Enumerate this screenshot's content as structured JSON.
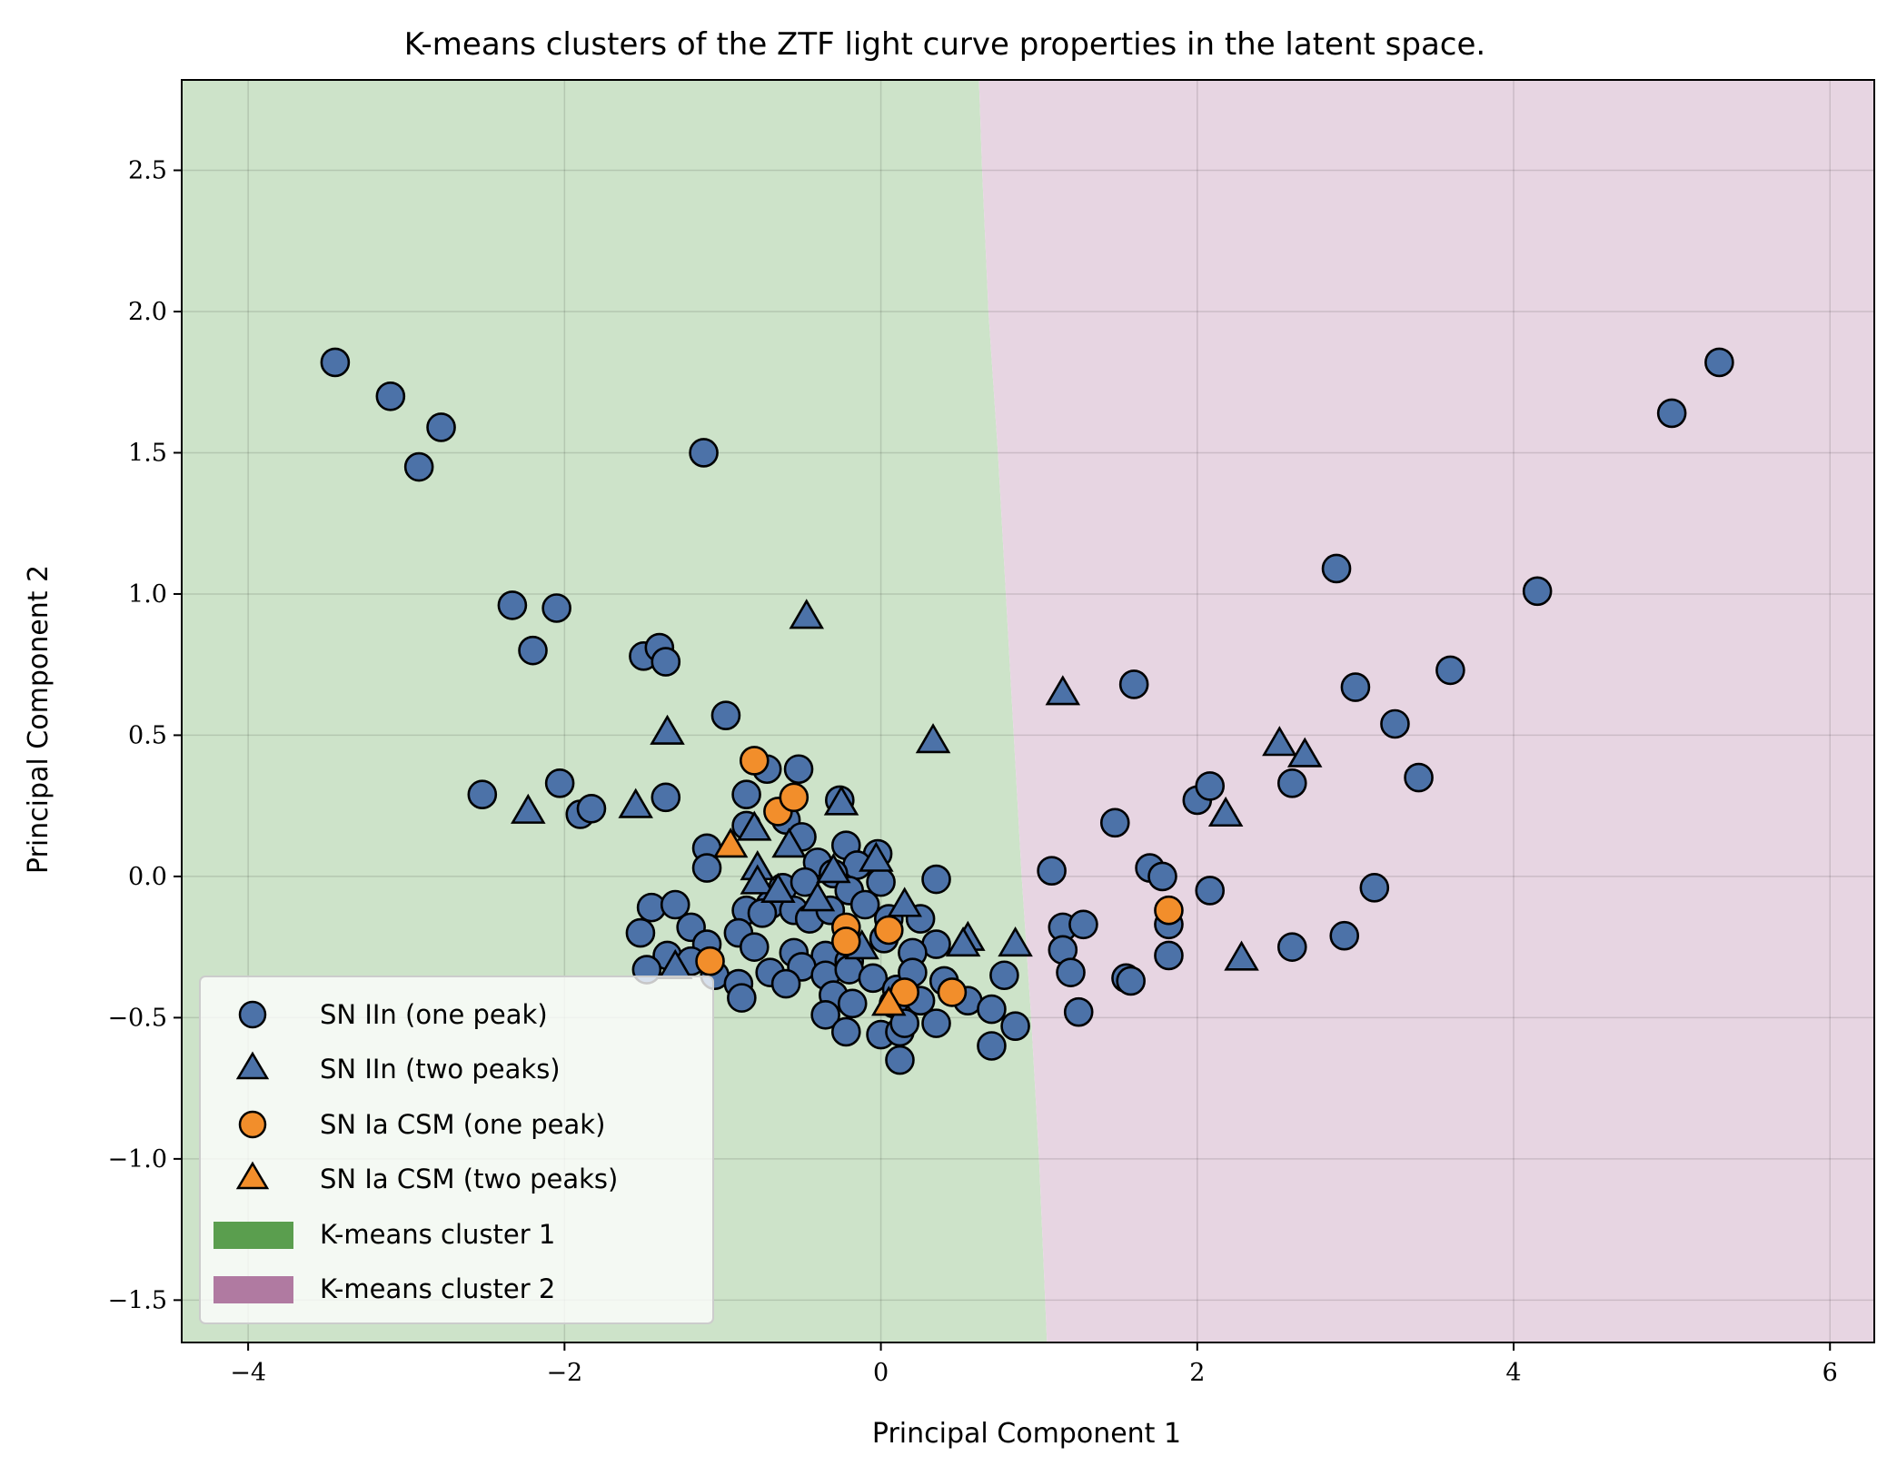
{
  "chart_data": {
    "type": "scatter",
    "title": "K-means clusters of the ZTF light curve properties in the latent space.",
    "xlabel": "Principal Component 1",
    "ylabel": "Principal Component 2",
    "xlim": [
      -4.42,
      6.28
    ],
    "ylim": [
      -1.65,
      2.82
    ],
    "xticks": [
      -4,
      -2,
      0,
      2,
      4,
      6
    ],
    "yticks": [
      -1.5,
      -1.0,
      -0.5,
      0.0,
      0.5,
      1.0,
      1.5,
      2.0,
      2.5
    ],
    "grid": true,
    "legend_position": "lower-left",
    "colors": {
      "sn_iin": "#4c72a8",
      "sn_ia_csm": "#f28e2b",
      "cluster1_fill": "#cde3c9",
      "cluster2_fill": "#e7d5e2",
      "cluster1_swatch": "#5a9e4e",
      "cluster2_swatch": "#b07aa1"
    },
    "boundary": [
      [
        0.62,
        2.82
      ],
      [
        0.64,
        2.5
      ],
      [
        0.68,
        2.0
      ],
      [
        0.74,
        1.5
      ],
      [
        0.79,
        1.0
      ],
      [
        0.84,
        0.5
      ],
      [
        0.89,
        0.0
      ],
      [
        0.95,
        -0.5
      ],
      [
        1.0,
        -1.0
      ],
      [
        1.05,
        -1.65
      ]
    ],
    "series": [
      {
        "name": "SN IIn (one peak)",
        "marker": "circle",
        "color": "#4c72a8",
        "points": [
          [
            -3.45,
            1.82
          ],
          [
            -3.1,
            1.7
          ],
          [
            -2.78,
            1.59
          ],
          [
            -2.92,
            1.45
          ],
          [
            -1.12,
            1.5
          ],
          [
            -2.33,
            0.96
          ],
          [
            -2.05,
            0.95
          ],
          [
            -2.2,
            0.8
          ],
          [
            -1.5,
            0.78
          ],
          [
            -1.4,
            0.81
          ],
          [
            -1.36,
            0.76
          ],
          [
            -0.98,
            0.57
          ],
          [
            -2.52,
            0.29
          ],
          [
            -2.03,
            0.33
          ],
          [
            -1.9,
            0.22
          ],
          [
            -1.83,
            0.24
          ],
          [
            -1.36,
            0.28
          ],
          [
            -0.72,
            0.38
          ],
          [
            -0.52,
            0.38
          ],
          [
            -0.85,
            0.29
          ],
          [
            -0.26,
            0.27
          ],
          [
            -0.6,
            0.2
          ],
          [
            -0.85,
            0.18
          ],
          [
            -0.5,
            0.14
          ],
          [
            -0.22,
            0.11
          ],
          [
            -0.02,
            0.08
          ],
          [
            -0.4,
            0.05
          ],
          [
            -0.15,
            0.04
          ],
          [
            -1.1,
            0.1
          ],
          [
            -1.1,
            0.03
          ],
          [
            -0.3,
            0.01
          ],
          [
            -0.62,
            -0.04
          ],
          [
            -0.48,
            -0.02
          ],
          [
            -0.2,
            -0.05
          ],
          [
            0.0,
            -0.02
          ],
          [
            0.35,
            -0.01
          ],
          [
            -1.45,
            -0.11
          ],
          [
            -1.3,
            -0.1
          ],
          [
            -1.2,
            -0.18
          ],
          [
            -0.85,
            -0.12
          ],
          [
            -0.7,
            -0.1
          ],
          [
            -0.55,
            -0.12
          ],
          [
            -0.45,
            -0.15
          ],
          [
            -0.32,
            -0.12
          ],
          [
            -0.1,
            -0.1
          ],
          [
            0.05,
            -0.15
          ],
          [
            0.25,
            -0.15
          ],
          [
            0.35,
            -0.24
          ],
          [
            -1.52,
            -0.2
          ],
          [
            -1.1,
            -0.24
          ],
          [
            -0.9,
            -0.2
          ],
          [
            -0.8,
            -0.25
          ],
          [
            -0.75,
            -0.13
          ],
          [
            -0.55,
            -0.27
          ],
          [
            -0.35,
            -0.28
          ],
          [
            -0.2,
            -0.3
          ],
          [
            0.02,
            -0.22
          ],
          [
            0.2,
            -0.27
          ],
          [
            -1.35,
            -0.28
          ],
          [
            -1.2,
            -0.3
          ],
          [
            -1.48,
            -0.33
          ],
          [
            -1.05,
            -0.35
          ],
          [
            -0.9,
            -0.38
          ],
          [
            -0.7,
            -0.34
          ],
          [
            -0.5,
            -0.32
          ],
          [
            -0.35,
            -0.35
          ],
          [
            -0.2,
            -0.33
          ],
          [
            -0.05,
            -0.36
          ],
          [
            0.1,
            -0.4
          ],
          [
            0.2,
            -0.34
          ],
          [
            0.4,
            -0.37
          ],
          [
            0.55,
            -0.44
          ],
          [
            0.78,
            -0.35
          ],
          [
            -0.88,
            -0.43
          ],
          [
            -0.6,
            -0.38
          ],
          [
            -0.3,
            -0.42
          ],
          [
            -0.18,
            -0.45
          ],
          [
            0.08,
            -0.45
          ],
          [
            0.25,
            -0.44
          ],
          [
            0.35,
            -0.52
          ],
          [
            0.7,
            -0.47
          ],
          [
            0.85,
            -0.53
          ],
          [
            -0.35,
            -0.49
          ],
          [
            -0.22,
            -0.55
          ],
          [
            0.0,
            -0.56
          ],
          [
            0.12,
            -0.55
          ],
          [
            0.15,
            -0.52
          ],
          [
            0.12,
            -0.65
          ],
          [
            0.7,
            -0.6
          ],
          [
            1.08,
            0.02
          ],
          [
            1.15,
            -0.18
          ],
          [
            1.15,
            -0.26
          ],
          [
            1.2,
            -0.34
          ],
          [
            1.25,
            -0.48
          ],
          [
            1.28,
            -0.17
          ],
          [
            1.48,
            0.19
          ],
          [
            1.6,
            0.68
          ],
          [
            1.55,
            -0.36
          ],
          [
            1.58,
            -0.37
          ],
          [
            1.7,
            0.03
          ],
          [
            1.78,
            0.0
          ],
          [
            1.82,
            -0.17
          ],
          [
            1.82,
            -0.28
          ],
          [
            2.0,
            0.27
          ],
          [
            2.08,
            0.32
          ],
          [
            2.08,
            -0.05
          ],
          [
            2.6,
            0.33
          ],
          [
            2.6,
            -0.25
          ],
          [
            2.88,
            1.09
          ],
          [
            2.93,
            -0.21
          ],
          [
            3.0,
            0.67
          ],
          [
            3.12,
            -0.04
          ],
          [
            3.25,
            0.54
          ],
          [
            3.4,
            0.35
          ],
          [
            3.6,
            0.73
          ],
          [
            4.15,
            1.01
          ],
          [
            5.0,
            1.64
          ],
          [
            5.3,
            1.82
          ]
        ]
      },
      {
        "name": "SN IIn (two peaks)",
        "marker": "triangle",
        "color": "#4c72a8",
        "points": [
          [
            -0.47,
            0.92
          ],
          [
            -1.35,
            0.51
          ],
          [
            0.33,
            0.48
          ],
          [
            1.15,
            0.65
          ],
          [
            2.52,
            0.47
          ],
          [
            2.68,
            0.43
          ],
          [
            -2.23,
            0.23
          ],
          [
            -1.55,
            0.25
          ],
          [
            -0.25,
            0.26
          ],
          [
            2.18,
            0.22
          ],
          [
            -0.8,
            0.17
          ],
          [
            -0.58,
            0.11
          ],
          [
            -0.78,
            0.03
          ],
          [
            -0.78,
            -0.02
          ],
          [
            -0.3,
            0.02
          ],
          [
            -0.03,
            0.06
          ],
          [
            -0.65,
            -0.05
          ],
          [
            -0.4,
            -0.08
          ],
          [
            0.15,
            -0.1
          ],
          [
            0.55,
            -0.22
          ],
          [
            0.52,
            -0.24
          ],
          [
            0.85,
            -0.24
          ],
          [
            -0.12,
            -0.25
          ],
          [
            -1.3,
            -0.32
          ],
          [
            2.28,
            -0.29
          ]
        ]
      },
      {
        "name": "SN Ia CSM (one peak)",
        "marker": "circle",
        "color": "#f28e2b",
        "points": [
          [
            -0.8,
            0.41
          ],
          [
            -0.65,
            0.23
          ],
          [
            -0.55,
            0.28
          ],
          [
            -0.22,
            -0.18
          ],
          [
            -0.22,
            -0.23
          ],
          [
            0.05,
            -0.19
          ],
          [
            -1.08,
            -0.3
          ],
          [
            0.15,
            -0.41
          ],
          [
            0.45,
            -0.41
          ],
          [
            1.82,
            -0.12
          ]
        ]
      },
      {
        "name": "SN Ia CSM (two peaks)",
        "marker": "triangle",
        "color": "#f28e2b",
        "points": [
          [
            -0.95,
            0.11
          ],
          [
            0.05,
            -0.45
          ]
        ]
      }
    ],
    "legend": {
      "cluster1_label": "K-means cluster 1",
      "cluster2_label": "K-means cluster 2"
    }
  }
}
